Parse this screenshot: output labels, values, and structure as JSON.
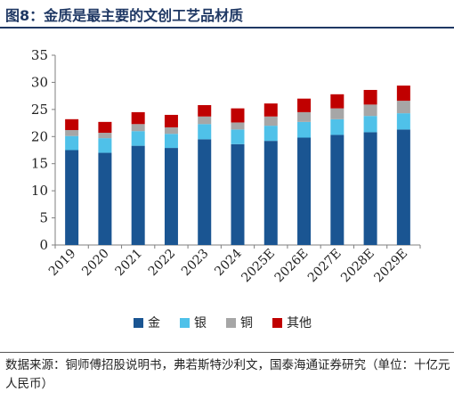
{
  "title": "图8：金质是最主要的文创工艺品材质",
  "source_text": "数据来源：铜师傅招股说明书，弗若斯特沙利文，国泰海通证券研究（单位：十亿元人民币）",
  "chart_data": {
    "type": "bar",
    "stacked": true,
    "categories": [
      "2019",
      "2020",
      "2021",
      "2022",
      "2023",
      "2024",
      "2025E",
      "2026E",
      "2027E",
      "2028E",
      "2029E"
    ],
    "series": [
      {
        "name": "金",
        "color": "#1a5592",
        "values": [
          17.5,
          17.0,
          18.3,
          17.9,
          19.5,
          18.6,
          19.2,
          19.8,
          20.3,
          20.8,
          21.3
        ]
      },
      {
        "name": "银",
        "color": "#4fc1e9",
        "values": [
          2.6,
          2.7,
          2.7,
          2.6,
          2.8,
          2.7,
          2.8,
          2.9,
          2.9,
          3.0,
          3.0
        ]
      },
      {
        "name": "铜",
        "color": "#a6a6a6",
        "values": [
          1.1,
          1.0,
          1.3,
          1.2,
          1.4,
          1.3,
          1.7,
          1.8,
          2.0,
          2.1,
          2.3
        ]
      },
      {
        "name": "其他",
        "color": "#c00000",
        "values": [
          2.0,
          2.0,
          2.2,
          2.3,
          2.1,
          2.6,
          2.4,
          2.5,
          2.6,
          2.7,
          2.8
        ]
      }
    ],
    "ylim": [
      0,
      35
    ],
    "yticks": [
      0,
      5,
      10,
      15,
      20,
      25,
      30,
      35
    ],
    "grid": false,
    "legend_position": "bottom"
  }
}
